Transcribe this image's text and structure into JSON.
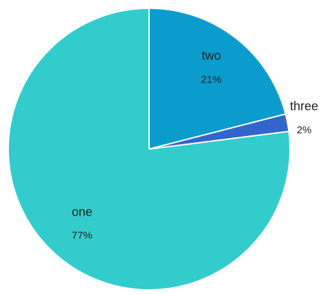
{
  "chart_data": {
    "type": "pie",
    "categories": [
      "two",
      "three",
      "one"
    ],
    "values": [
      21,
      2,
      77
    ],
    "value_labels": [
      "21%",
      "2%",
      "77%"
    ],
    "colors": [
      "#0a9ccc",
      "#3366cc",
      "#33cccc"
    ]
  }
}
